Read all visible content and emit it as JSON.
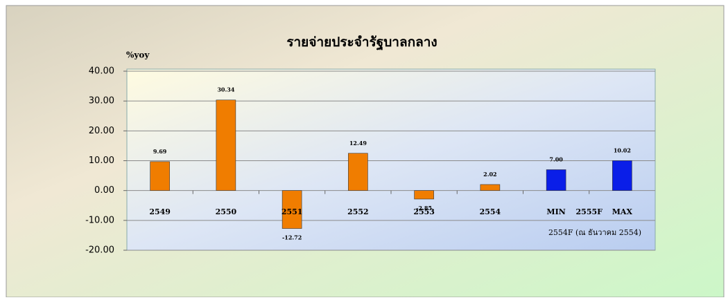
{
  "chart_data": {
    "type": "bar",
    "title": "รายจ่ายประจำรัฐบาลกลาง",
    "y_axis_label": "%yoy",
    "categories": [
      "2549",
      "2550",
      "2551",
      "2552",
      "2553",
      "2554",
      "MIN",
      "MAX"
    ],
    "values": [
      9.69,
      30.34,
      -12.72,
      12.49,
      -2.85,
      2.02,
      7.0,
      10.02
    ],
    "value_labels": [
      "9.69",
      "30.34",
      "-12.72",
      "12.49",
      "-2.85",
      "2.02",
      "7.00",
      "10.02"
    ],
    "colors": [
      "#f07d00",
      "#f07d00",
      "#f07d00",
      "#f07d00",
      "#f07d00",
      "#f07d00",
      "#0a1ee8",
      "#0a1ee8"
    ],
    "annotations": [
      "2555F",
      "2554F (ณ ธันวาคม 2554)"
    ],
    "ylim": [
      -20,
      40
    ],
    "yticks": [
      {
        "value": -20,
        "label": "-20.00"
      },
      {
        "value": -10,
        "label": "-10.00"
      },
      {
        "value": 0,
        "label": "0.00"
      },
      {
        "value": 10,
        "label": "10.00"
      },
      {
        "value": 20,
        "label": "20.00"
      },
      {
        "value": 30,
        "label": "30.00"
      },
      {
        "value": 40,
        "label": "40.00"
      }
    ],
    "grid": true
  }
}
